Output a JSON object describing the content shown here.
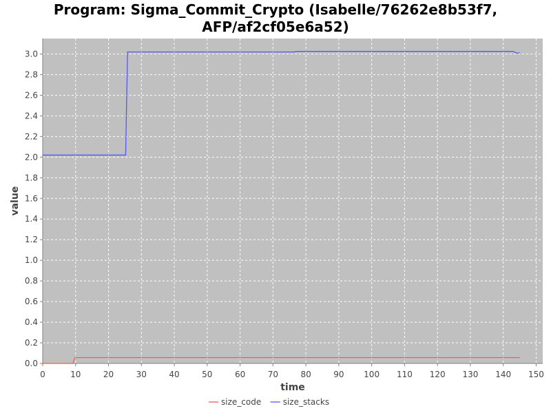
{
  "chart_data": {
    "type": "line",
    "title_line1": "Program: Sigma_Commit_Crypto (Isabelle/76262e8b53f7,",
    "title_line2": "AFP/af2cf05e6a52)",
    "xlabel": "time",
    "ylabel": "value",
    "xlim": [
      0,
      152
    ],
    "ylim": [
      0,
      3.15
    ],
    "x_ticks": [
      0,
      10,
      20,
      30,
      40,
      50,
      60,
      70,
      80,
      90,
      100,
      110,
      120,
      130,
      140,
      150
    ],
    "y_ticks": [
      0.0,
      0.2,
      0.4,
      0.6,
      0.8,
      1.0,
      1.2,
      1.4,
      1.6,
      1.8,
      2.0,
      2.2,
      2.4,
      2.6,
      2.8,
      3.0
    ],
    "grid": true,
    "legend_position": "bottom",
    "series": [
      {
        "name": "size_code",
        "color": "#ff5555",
        "points": [
          [
            0,
            0.0
          ],
          [
            9.2,
            0.0
          ],
          [
            9.8,
            0.057
          ],
          [
            145,
            0.057
          ]
        ]
      },
      {
        "name": "size_stacks",
        "color": "#5555ff",
        "points": [
          [
            0,
            2.02
          ],
          [
            25.2,
            2.02
          ],
          [
            25.8,
            3.02
          ],
          [
            76.5,
            3.02
          ],
          [
            77,
            3.025
          ],
          [
            143,
            3.025
          ],
          [
            144,
            3.01
          ],
          [
            145,
            3.01
          ]
        ]
      }
    ]
  }
}
